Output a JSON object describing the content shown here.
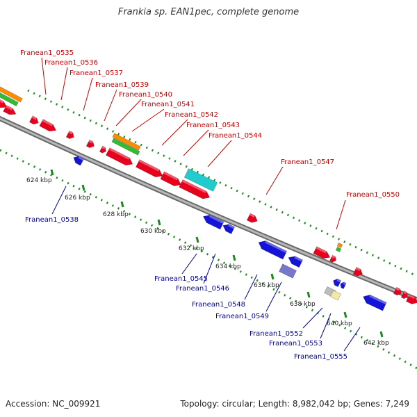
{
  "title": "Frankia sp. EAN1pec, complete genome",
  "footer": {
    "accession": "Accession: NC_009921",
    "stats": "Topology: circular; Length: 8,982,042 bp; Genes: 7,249"
  },
  "colors": {
    "forward_gene": "#e8001c",
    "reverse_gene": "#1414d8",
    "backbone": "#8a8a8a",
    "tick": "#1a8a1a",
    "forward_label": "#cc0000",
    "reverse_label": "#000099",
    "orange_track": "#ff8c00",
    "green_track": "#33bb33",
    "cyan_feature": "#22cccc",
    "lavender_feature": "#7777cc"
  },
  "tick_labels": [
    "624 kbp",
    "626 kbp",
    "628 kbp",
    "630 kbp",
    "632 kbp",
    "634 kbp",
    "636 kbp",
    "638 kbp",
    "640 kbp",
    "642 kbp"
  ],
  "forward_gene_labels": [
    "Franean1_0535",
    "Franean1_0536",
    "Franean1_0537",
    "Franean1_0539",
    "Franean1_0540",
    "Franean1_0541",
    "Franean1_0542",
    "Franean1_0543",
    "Franean1_0544",
    "Franean1_0547",
    "Franean1_0550"
  ],
  "reverse_gene_labels": [
    "Franean1_0538",
    "Franean1_0545",
    "Franean1_0546",
    "Franean1_0548",
    "Franean1_0549",
    "Franean1_0552",
    "Franean1_0553",
    "Franean1_0555"
  ]
}
